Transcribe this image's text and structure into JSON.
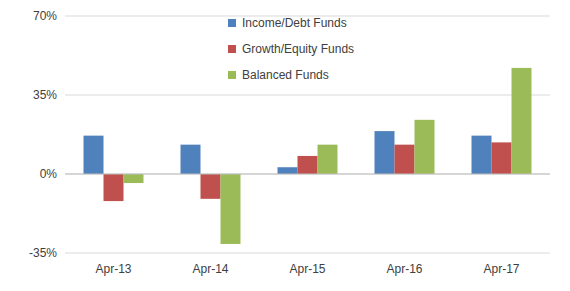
{
  "chart_data": {
    "type": "bar",
    "categories": [
      "Apr-13",
      "Apr-14",
      "Apr-15",
      "Apr-16",
      "Apr-17"
    ],
    "series": [
      {
        "name": "Income/Debt Funds",
        "color": "#4f81bd",
        "values": [
          17,
          13,
          3,
          19,
          17
        ]
      },
      {
        "name": "Growth/Equity Funds",
        "color": "#c0504d",
        "values": [
          -12,
          -11,
          8,
          13,
          14
        ]
      },
      {
        "name": "Balanced Funds",
        "color": "#9bbb59",
        "values": [
          -4,
          -31,
          13,
          24,
          47
        ]
      }
    ],
    "ylim": [
      -35,
      70
    ],
    "yticks": [
      {
        "value": -35,
        "label": "-35%"
      },
      {
        "value": 0,
        "label": "0%"
      },
      {
        "value": 35,
        "label": "35%"
      },
      {
        "value": 70,
        "label": "70%"
      }
    ],
    "grid": true,
    "legend": "top"
  }
}
